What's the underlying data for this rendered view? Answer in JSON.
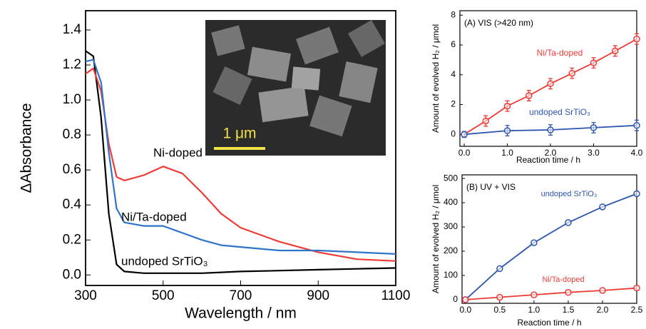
{
  "chart_data": [
    {
      "type": "line",
      "xlabel": "Wavelength / nm",
      "ylabel": "ΔAbsorbance",
      "inset_scale_label": "1 μm",
      "x": [
        300,
        320,
        340,
        360,
        380,
        400,
        450,
        500,
        550,
        600,
        650,
        700,
        800,
        900,
        1000,
        1100
      ],
      "series": [
        {
          "name": "undoped SrTiO₃",
          "color": "#000000",
          "values": [
            1.28,
            1.25,
            0.9,
            0.35,
            0.06,
            0.02,
            0.01,
            0.01,
            0.01,
            0.01,
            0.015,
            0.02,
            0.025,
            0.03,
            0.035,
            0.04
          ]
        },
        {
          "name": "Ni-doped",
          "color": "#ee3b36",
          "values": [
            1.15,
            1.18,
            1.05,
            0.75,
            0.56,
            0.54,
            0.57,
            0.62,
            0.58,
            0.47,
            0.35,
            0.27,
            0.19,
            0.13,
            0.09,
            0.08
          ]
        },
        {
          "name": "Ni/Ta-doped",
          "color": "#2f74c8",
          "values": [
            1.22,
            1.23,
            1.1,
            0.7,
            0.38,
            0.3,
            0.28,
            0.28,
            0.24,
            0.2,
            0.17,
            0.16,
            0.14,
            0.14,
            0.13,
            0.12
          ]
        }
      ],
      "xlim": [
        300,
        1100
      ],
      "xticks": [
        300,
        500,
        700,
        900,
        1100
      ],
      "ylim": [
        -0.06,
        1.51
      ],
      "yticks": [
        {
          "value": 0,
          "label": "0.0"
        },
        0.2,
        0.4,
        0.6,
        0.8,
        {
          "value": 1,
          "label": "1.0"
        },
        1.2,
        1.4
      ]
    },
    {
      "type": "scatter",
      "title": "(A) VIS (>420 nm)",
      "xlabel": "Reaction time / h",
      "ylabel": "Amount of evolved H₂ / μmol",
      "series": [
        {
          "name": "Ni/Ta-doped",
          "color": "#ee3b36",
          "x": [
            0,
            0.5,
            1,
            1.5,
            2,
            2.5,
            3,
            3.5,
            4
          ],
          "values": [
            0,
            0.9,
            1.9,
            2.6,
            3.4,
            4.1,
            4.8,
            5.6,
            6.4
          ],
          "errors": [
            0.2,
            0.35,
            0.35,
            0.35,
            0.35,
            0.35,
            0.35,
            0.35,
            0.35
          ]
        },
        {
          "name": "undoped SrTiO₃",
          "color": "#2c55b0",
          "x": [
            0,
            1,
            2,
            3,
            4
          ],
          "values": [
            0,
            0.25,
            0.3,
            0.45,
            0.6
          ],
          "errors": [
            0.2,
            0.35,
            0.35,
            0.35,
            0.35
          ]
        }
      ],
      "xlim": [
        -0.1,
        4.0
      ],
      "xticks": [
        {
          "value": 0,
          "label": "0.0"
        },
        {
          "value": 1,
          "label": "1.0"
        },
        {
          "value": 2,
          "label": "2.0"
        },
        {
          "value": 3,
          "label": "3.0"
        },
        {
          "value": 4,
          "label": "4.0"
        }
      ],
      "ylim": [
        -0.8,
        8.3
      ],
      "yticks": [
        0,
        2,
        4,
        6,
        8
      ]
    },
    {
      "type": "scatter",
      "title": "(B) UV + VIS",
      "xlabel": "Reaction time / h",
      "ylabel": "Amount of evolved H₂ / μmol",
      "series": [
        {
          "name": "undoped SrTiO₃",
          "color": "#2c55b0",
          "x": [
            0,
            0.5,
            1,
            1.5,
            2,
            2.5
          ],
          "values": [
            0,
            128,
            235,
            318,
            383,
            437
          ]
        },
        {
          "name": "Ni/Ta-doped",
          "color": "#ee3b36",
          "x": [
            0,
            0.5,
            1,
            1.5,
            2,
            2.5
          ],
          "values": [
            0,
            10,
            20,
            30,
            38,
            48
          ]
        }
      ],
      "xlim": [
        -0.05,
        2.5
      ],
      "xticks": [
        {
          "value": 0,
          "label": "0.0"
        },
        0.5,
        {
          "value": 1,
          "label": "1.0"
        },
        1.5,
        {
          "value": 2,
          "label": "2.0"
        },
        2.5
      ],
      "ylim": [
        -15,
        515
      ],
      "yticks": [
        0,
        100,
        200,
        300,
        400,
        500
      ]
    }
  ]
}
